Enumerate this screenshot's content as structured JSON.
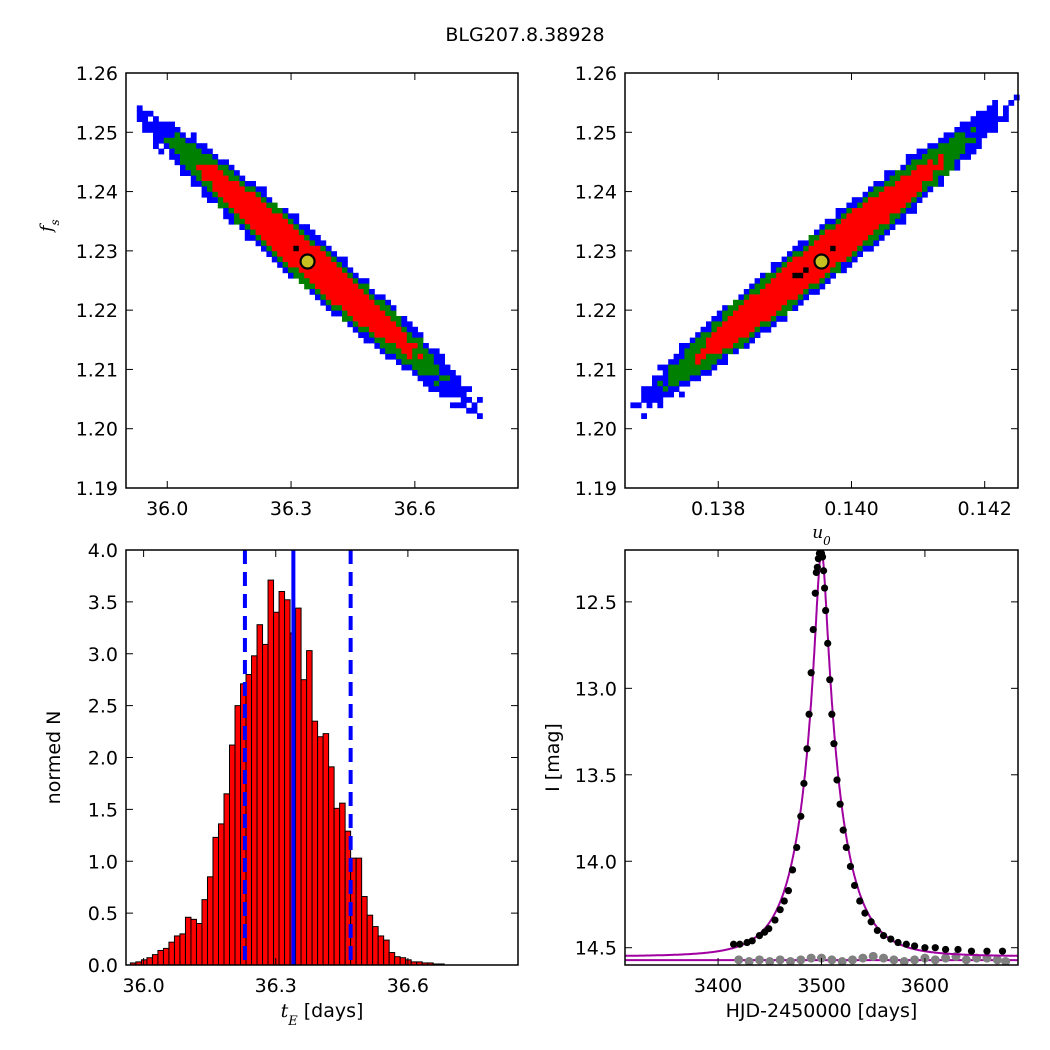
{
  "figure": {
    "title": "BLG207.8.38928"
  },
  "chart_data": [
    {
      "id": "tE_fs",
      "type": "heatmap",
      "xlabel": "",
      "ylabel": "f_s",
      "xlim": [
        35.9,
        36.85
      ],
      "ylim": [
        1.19,
        1.26
      ],
      "xticks": [
        "36.0",
        "36.3",
        "36.6"
      ],
      "yticks": [
        "1.19",
        "1.20",
        "1.21",
        "1.22",
        "1.23",
        "1.24",
        "1.25",
        "1.26"
      ],
      "distribution": {
        "center": [
          36.34,
          1.2285
        ],
        "axis_end_upper": [
          35.98,
          1.2505
        ],
        "axis_end_lower": [
          36.76,
          1.2025
        ],
        "cross_halfwidth_fs": 0.0052
      },
      "levels": [
        {
          "name": "outer",
          "color": "#0000ff"
        },
        {
          "name": "middle",
          "color": "#008000"
        },
        {
          "name": "inner",
          "color": "#ff0000"
        },
        {
          "name": "peak",
          "color": "#000000"
        }
      ],
      "best_fit": {
        "x": 36.34,
        "y": 1.2282,
        "color": "#c8c020"
      }
    },
    {
      "id": "u0_fs",
      "type": "heatmap",
      "xlabel": "u_0",
      "ylabel": "",
      "xlim": [
        0.1366,
        0.1425
      ],
      "ylim": [
        1.19,
        1.26
      ],
      "xticks": [
        "0.138",
        "0.140",
        "0.142"
      ],
      "yticks": [
        "1.19",
        "1.20",
        "1.21",
        "1.22",
        "1.23",
        "1.24",
        "1.25",
        "1.26"
      ],
      "distribution": {
        "center": [
          0.1395,
          1.2285
        ],
        "axis_end_upper": [
          0.1421,
          1.2505
        ],
        "axis_end_lower": [
          0.1367,
          1.201
        ],
        "cross_halfwidth_fs": 0.0052
      },
      "levels": [
        {
          "name": "outer",
          "color": "#0000ff"
        },
        {
          "name": "middle",
          "color": "#008000"
        },
        {
          "name": "inner",
          "color": "#ff0000"
        },
        {
          "name": "peak",
          "color": "#000000"
        }
      ],
      "best_fit": {
        "x": 0.13955,
        "y": 1.2282,
        "color": "#c8c020"
      }
    },
    {
      "id": "tE_hist",
      "type": "bar",
      "xlabel": "t_E  [days]",
      "ylabel": "normed N",
      "xlim": [
        35.96,
        36.85
      ],
      "ylim": [
        0.0,
        4.0
      ],
      "xticks": [
        "36.0",
        "36.3",
        "36.6"
      ],
      "yticks": [
        "0.0",
        "0.5",
        "1.0",
        "1.5",
        "2.0",
        "2.5",
        "3.0",
        "3.5",
        "4.0"
      ],
      "bin_start": 35.97,
      "bin_width": 0.0125,
      "bar_color": "#ff0000",
      "values": [
        0.02,
        0.03,
        0.05,
        0.07,
        0.1,
        0.14,
        0.16,
        0.22,
        0.28,
        0.3,
        0.46,
        0.44,
        0.4,
        0.63,
        0.85,
        1.23,
        1.36,
        1.65,
        2.12,
        2.5,
        2.71,
        2.8,
        2.98,
        3.28,
        3.09,
        3.71,
        3.4,
        3.6,
        3.52,
        3.2,
        3.44,
        2.75,
        3.03,
        2.35,
        2.2,
        2.23,
        1.91,
        1.51,
        1.56,
        1.29,
        1.03,
        1.03,
        0.66,
        0.48,
        0.37,
        0.28,
        0.24,
        0.12,
        0.08,
        0.07,
        0.05,
        0.03,
        0.03,
        0.02,
        0.02,
        0.01,
        0.01
      ],
      "median": 36.34,
      "lower_bound": 36.23,
      "upper_bound": 36.47,
      "line_color": "#0000ff"
    },
    {
      "id": "lightcurve",
      "type": "scatter",
      "xlabel": "HJD-2450000 [days]",
      "ylabel": "I [mag]",
      "xlim": [
        3310,
        3690
      ],
      "ylim": [
        14.6,
        12.2
      ],
      "y_inverted": true,
      "xticks": [
        "3400",
        "3500",
        "3600"
      ],
      "yticks": [
        "12.5",
        "13.0",
        "13.5",
        "14.0",
        "14.5"
      ],
      "model": {
        "t0": 3500.0,
        "u0": 0.1396,
        "tE": 36.34,
        "fs": 1.228,
        "I_base": 14.55,
        "color": "#a000a0"
      },
      "baseline_line": {
        "y": 14.572,
        "color": "#a000a0"
      },
      "series": [
        {
          "color": "#000000",
          "x": [
            3415,
            3421,
            3428,
            3433,
            3440,
            3445,
            3449,
            3455,
            3460,
            3464,
            3468,
            3472,
            3476,
            3480,
            3483,
            3486,
            3488,
            3490,
            3492,
            3494,
            3495,
            3496,
            3497,
            3498,
            3499,
            3500,
            3501,
            3502,
            3503,
            3504,
            3506,
            3508,
            3510,
            3512,
            3515,
            3518,
            3521,
            3524,
            3528,
            3532,
            3537,
            3542,
            3548,
            3554,
            3560,
            3567,
            3574,
            3582,
            3590,
            3600,
            3610,
            3620,
            3632,
            3645,
            3660,
            3675
          ],
          "y": [
            14.48,
            14.48,
            14.47,
            14.46,
            14.43,
            14.41,
            14.39,
            14.34,
            14.28,
            14.23,
            14.17,
            14.05,
            13.92,
            13.74,
            13.55,
            13.35,
            13.15,
            12.91,
            12.66,
            12.45,
            12.33,
            12.3,
            12.25,
            12.22,
            12.21,
            12.22,
            12.24,
            12.32,
            12.42,
            12.55,
            12.74,
            12.95,
            13.15,
            13.32,
            13.53,
            13.67,
            13.82,
            13.92,
            14.03,
            14.14,
            14.23,
            14.3,
            14.35,
            14.4,
            14.43,
            14.45,
            14.47,
            14.48,
            14.49,
            14.5,
            14.5,
            14.51,
            14.51,
            14.52,
            14.52,
            14.52
          ]
        },
        {
          "color": "#808080",
          "x": [
            3420,
            3430,
            3440,
            3450,
            3460,
            3470,
            3480,
            3490,
            3500,
            3510,
            3520,
            3530,
            3540,
            3550,
            3560,
            3570,
            3580,
            3590,
            3600,
            3610,
            3620,
            3630,
            3640,
            3650,
            3660,
            3670,
            3678
          ],
          "y": [
            14.57,
            14.58,
            14.57,
            14.58,
            14.57,
            14.58,
            14.57,
            14.56,
            14.56,
            14.57,
            14.58,
            14.57,
            14.56,
            14.55,
            14.56,
            14.57,
            14.58,
            14.57,
            14.56,
            14.57,
            14.56,
            14.55,
            14.57,
            14.56,
            14.56,
            14.57,
            14.58
          ]
        }
      ]
    }
  ]
}
